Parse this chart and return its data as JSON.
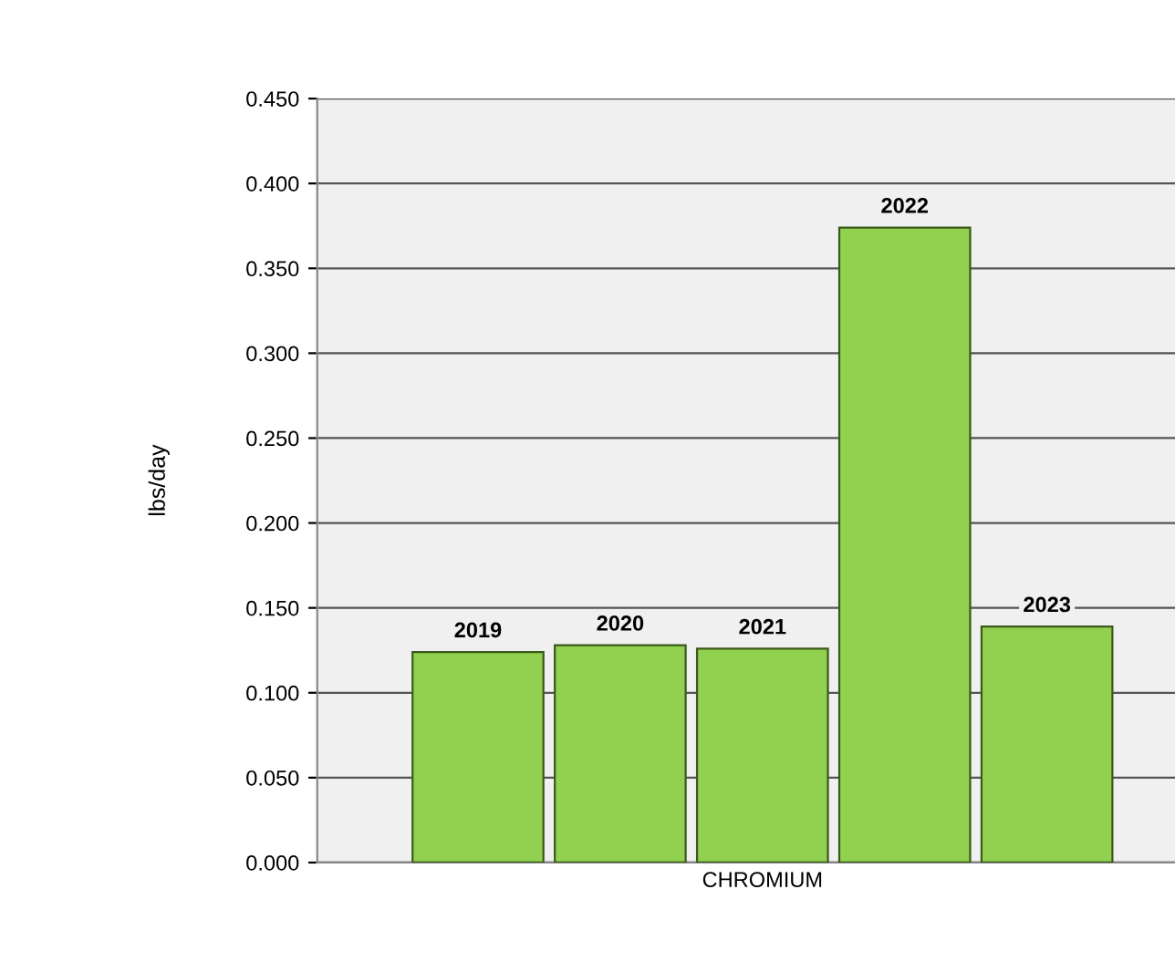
{
  "chart_data": {
    "type": "bar",
    "ylabel": "lbs/day",
    "categories": [
      "CHROMIUM"
    ],
    "series": [
      {
        "name": "2019",
        "color": "#92d050",
        "values": [
          0.124
        ]
      },
      {
        "name": "2020",
        "color": "#92d050",
        "values": [
          0.128
        ]
      },
      {
        "name": "2021",
        "color": "#92d050",
        "values": [
          0.126
        ]
      },
      {
        "name": "2022",
        "color": "#92d050",
        "values": [
          0.374
        ]
      },
      {
        "name": "2023",
        "color": "#92d050",
        "values": [
          0.139
        ]
      }
    ],
    "ylim": [
      0,
      0.45
    ],
    "yticks": [
      {
        "value": 0,
        "label": "0.000"
      },
      {
        "value": 0.05,
        "label": "0.050"
      },
      {
        "value": 0.1,
        "label": "0.100"
      },
      {
        "value": 0.15,
        "label": "0.150"
      },
      {
        "value": 0.2,
        "label": "0.200"
      },
      {
        "value": 0.25,
        "label": "0.250"
      },
      {
        "value": 0.3,
        "label": "0.300"
      },
      {
        "value": 0.35,
        "label": "0.350"
      },
      {
        "value": 0.4,
        "label": "0.400"
      },
      {
        "value": 0.45,
        "label": "0.450"
      }
    ],
    "grid": "y",
    "legend": false
  }
}
